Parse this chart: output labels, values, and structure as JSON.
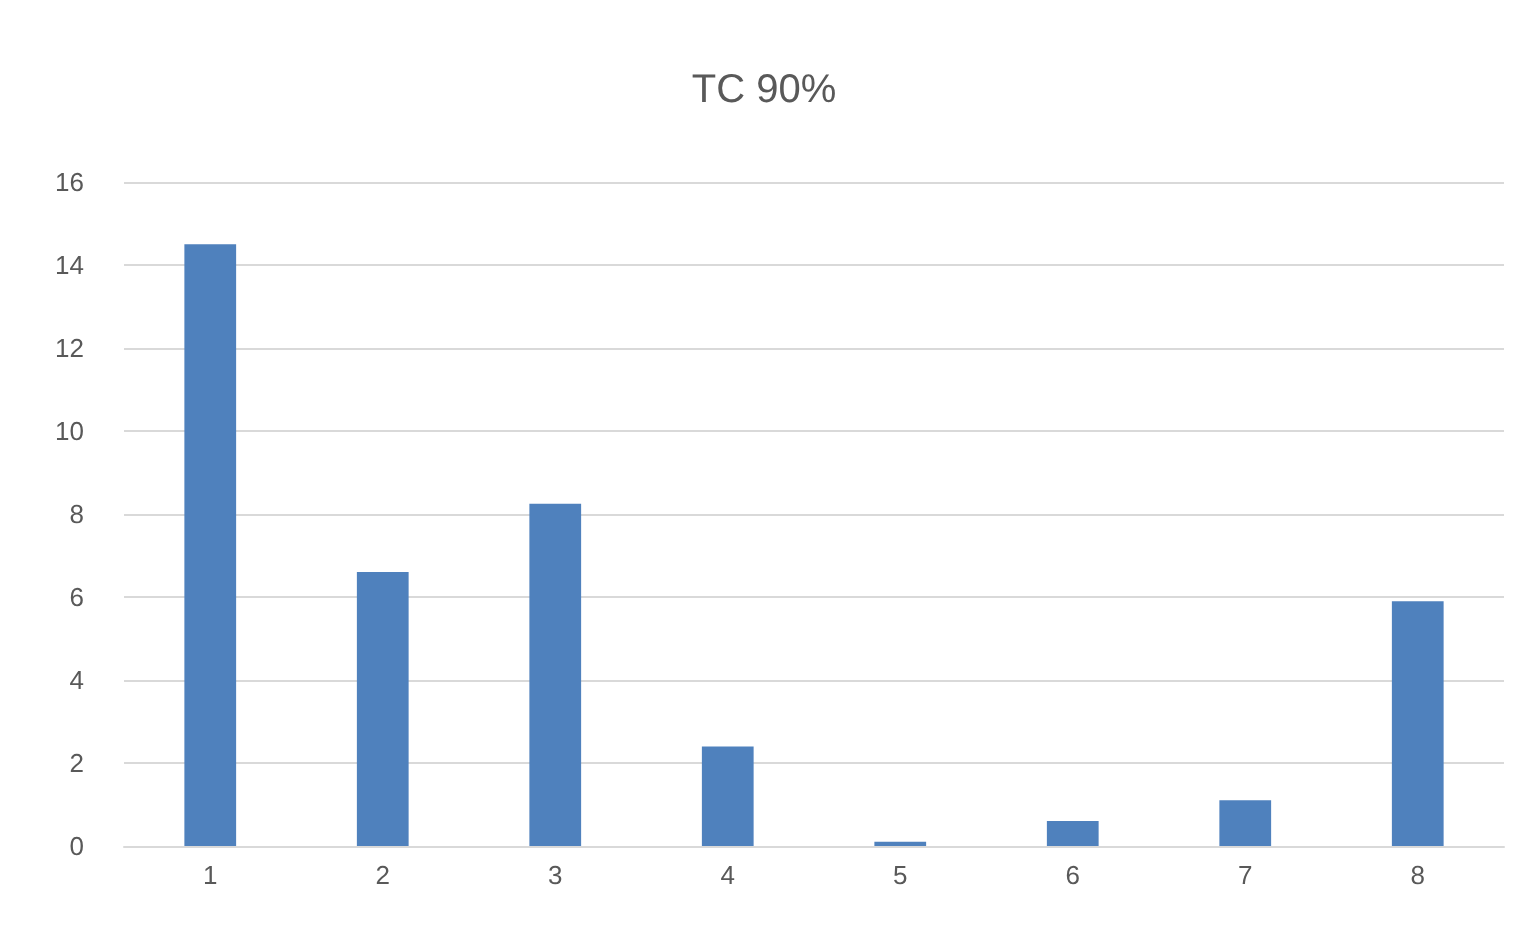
{
  "chart_data": {
    "type": "bar",
    "title": "TC 90%",
    "categories": [
      "1",
      "2",
      "3",
      "4",
      "5",
      "6",
      "7",
      "8"
    ],
    "values": [
      14.5,
      6.6,
      8.25,
      2.4,
      0.1,
      0.6,
      1.1,
      5.9
    ],
    "color": "#4f81bd",
    "ylim": [
      0,
      16
    ],
    "yticks": [
      0,
      2,
      4,
      6,
      8,
      10,
      12,
      14,
      16
    ],
    "grid": "y"
  }
}
